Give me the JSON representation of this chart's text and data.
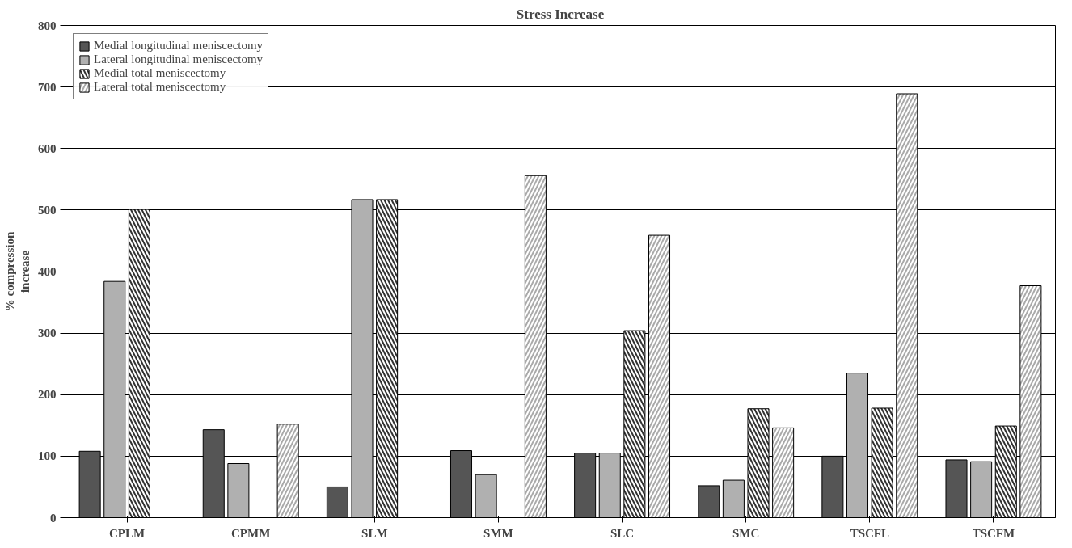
{
  "chart_data": {
    "type": "bar",
    "title": "Stress Increase",
    "ylabel": "% compression increase",
    "categories": [
      "CPLM",
      "CPMM",
      "SLM",
      "SMM",
      "SLC",
      "SMC",
      "TSCFL",
      "TSCFM"
    ],
    "series": [
      {
        "name": "Medial longitudinal meniscectomy",
        "color": "#555555",
        "values": [
          108,
          143,
          50,
          109,
          105,
          52,
          100,
          94
        ]
      },
      {
        "name": "Lateral longitudinal meniscectomy",
        "color": "#b0b0b0",
        "values": [
          384,
          88,
          517,
          70,
          105,
          61,
          235,
          91
        ]
      },
      {
        "name": "Medial total meniscectomy",
        "color": "#333333",
        "values": [
          501,
          null,
          517,
          null,
          304,
          177,
          178,
          149
        ]
      },
      {
        "name": "Lateral total meniscectomy",
        "color": "#aaaaaa",
        "values": [
          null,
          152,
          null,
          556,
          459,
          146,
          689,
          377
        ]
      }
    ],
    "ylim": [
      0,
      800
    ],
    "yticks": [
      0,
      100,
      200,
      300,
      400,
      500,
      600,
      700,
      800
    ],
    "grid": "y",
    "legend": "top left"
  }
}
